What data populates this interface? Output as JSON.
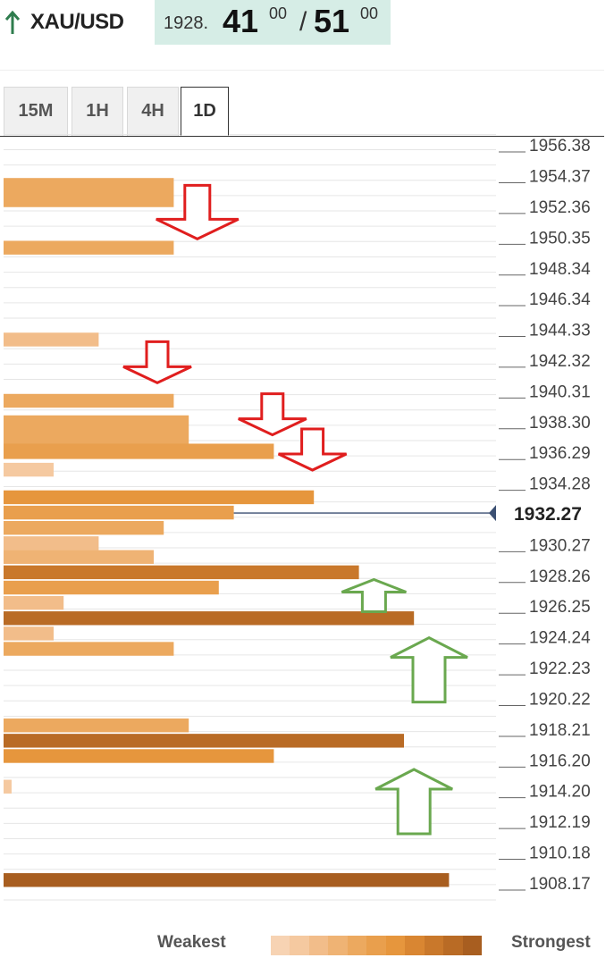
{
  "header": {
    "symbol": "XAU/USD",
    "bid_prefix": "1928.",
    "bid_main": "41",
    "bid_sup": "00",
    "separator": "/",
    "ask_main": "51",
    "ask_sup": "00",
    "trend_color": "#2f7d4e",
    "quote_bg": "#d6ede6"
  },
  "tabs": [
    {
      "label": "15M",
      "active": false
    },
    {
      "label": "1H",
      "active": false
    },
    {
      "label": "4H",
      "active": false
    },
    {
      "label": "1D",
      "active": true
    }
  ],
  "legend": {
    "weakest": "Weakest",
    "strongest": "Strongest",
    "colors": [
      "#f7d3b3",
      "#f5c9a0",
      "#f2bd8a",
      "#efb374",
      "#eca95f",
      "#e99f4d",
      "#e6963d",
      "#d98632",
      "#c9782b",
      "#b96b25",
      "#a85e20"
    ]
  },
  "chart_data": {
    "type": "bar",
    "orientation": "horizontal",
    "y_ticks": [
      "1956.38",
      "1954.37",
      "1952.36",
      "1950.35",
      "1948.34",
      "1946.34",
      "1944.33",
      "1942.32",
      "1940.31",
      "1938.30",
      "1936.29",
      "1934.28",
      "1930.27",
      "1928.26",
      "1926.25",
      "1924.24",
      "1922.23",
      "1920.22",
      "1918.21",
      "1916.20",
      "1914.20",
      "1912.19",
      "1910.18",
      "1908.17"
    ],
    "current_price": "1932.27",
    "ylim": [
      1907.5,
      1957.0
    ],
    "strength_levels": 11,
    "bars": [
      {
        "price": 1953.2,
        "span": 1.9,
        "strength": 0.34,
        "level": 4
      },
      {
        "price": 1949.6,
        "span": 0.9,
        "strength": 0.34,
        "level": 4
      },
      {
        "price": 1943.6,
        "span": 0.9,
        "strength": 0.19,
        "level": 2
      },
      {
        "price": 1939.6,
        "span": 0.9,
        "strength": 0.34,
        "level": 4
      },
      {
        "price": 1937.7,
        "span": 1.9,
        "strength": 0.37,
        "level": 4
      },
      {
        "price": 1936.3,
        "span": 1.0,
        "strength": 0.54,
        "level": 5
      },
      {
        "price": 1935.1,
        "span": 0.9,
        "strength": 0.1,
        "level": 1
      },
      {
        "price": 1933.3,
        "span": 0.9,
        "strength": 0.62,
        "level": 6
      },
      {
        "price": 1932.3,
        "span": 0.9,
        "strength": 0.46,
        "level": 5
      },
      {
        "price": 1931.3,
        "span": 0.9,
        "strength": 0.32,
        "level": 4
      },
      {
        "price": 1930.3,
        "span": 0.9,
        "strength": 0.19,
        "level": 2
      },
      {
        "price": 1929.4,
        "span": 0.9,
        "strength": 0.3,
        "level": 3
      },
      {
        "price": 1928.4,
        "span": 0.9,
        "strength": 0.71,
        "level": 8
      },
      {
        "price": 1927.4,
        "span": 0.9,
        "strength": 0.43,
        "level": 5
      },
      {
        "price": 1926.4,
        "span": 0.9,
        "strength": 0.12,
        "level": 2
      },
      {
        "price": 1925.4,
        "span": 0.9,
        "strength": 0.82,
        "level": 9
      },
      {
        "price": 1924.4,
        "span": 0.9,
        "strength": 0.1,
        "level": 2
      },
      {
        "price": 1923.4,
        "span": 0.9,
        "strength": 0.34,
        "level": 4
      },
      {
        "price": 1918.4,
        "span": 0.9,
        "strength": 0.37,
        "level": 4
      },
      {
        "price": 1917.4,
        "span": 0.9,
        "strength": 0.8,
        "level": 9
      },
      {
        "price": 1916.4,
        "span": 0.9,
        "strength": 0.54,
        "level": 6
      },
      {
        "price": 1914.4,
        "span": 0.9,
        "strength": 0.016,
        "level": 1
      },
      {
        "price": 1908.3,
        "span": 0.9,
        "strength": 0.89,
        "level": 10
      }
    ],
    "resistance_arrows": [
      {
        "price": 1950.7,
        "strength": 0.38,
        "size": "large"
      },
      {
        "price": 1941.3,
        "strength": 0.3,
        "size": "small"
      },
      {
        "price": 1937.9,
        "strength": 0.53,
        "size": "small"
      },
      {
        "price": 1935.6,
        "strength": 0.61,
        "size": "small"
      }
    ],
    "support_arrows": [
      {
        "price": 1927.4,
        "strength": 0.74,
        "size": "small"
      },
      {
        "price": 1923.6,
        "strength": 0.85,
        "size": "large"
      },
      {
        "price": 1915.0,
        "strength": 0.82,
        "size": "large"
      }
    ],
    "arrow_colors": {
      "resistance": "#e01e1e",
      "support": "#6aa84f"
    },
    "current_line_color": "#3b4f72"
  }
}
